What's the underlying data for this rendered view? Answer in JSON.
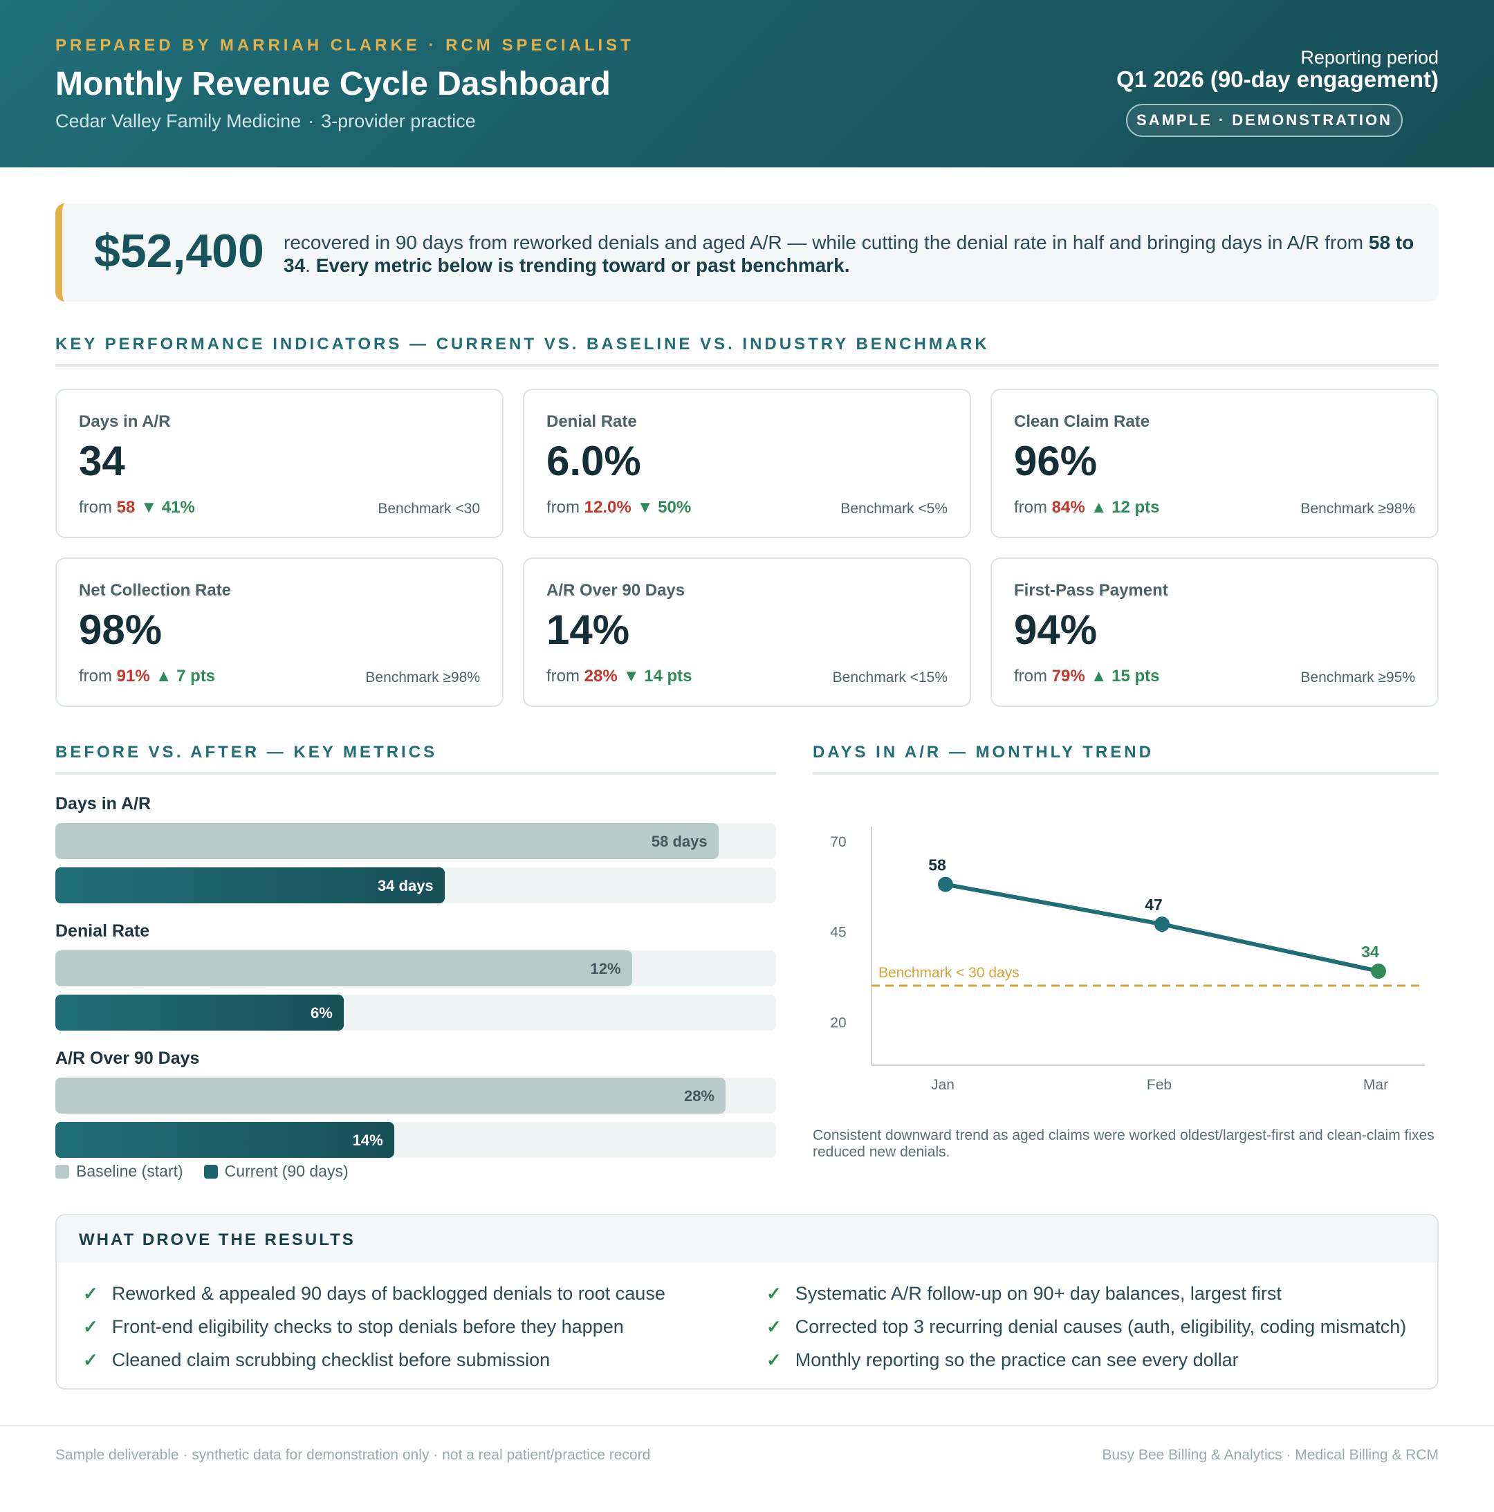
{
  "header": {
    "prepared_by": "PREPARED BY MARRIAH CLARKE · RCM SPECIALIST",
    "title": "Monthly Revenue Cycle Dashboard",
    "practice": "Cedar Valley Family Medicine",
    "separator": "·",
    "practice_size": "3-provider practice",
    "period_label": "Reporting period",
    "period_value": "Q1 2026 (90-day engagement)",
    "badge": "SAMPLE · DEMONSTRATION"
  },
  "hero": {
    "amount": "$52,400",
    "text_1": "recovered in 90 days from reworked denials and aged A/R — while cutting the denial rate in half and bringing days in A/R from ",
    "from_value": "58",
    "text_2": " to ",
    "to_value": "34",
    "text_3": ". ",
    "emphasis": "Every metric below is trending toward or past benchmark."
  },
  "kpi_section": {
    "title": "KEY PERFORMANCE INDICATORS — CURRENT VS. BASELINE VS. INDUSTRY BENCHMARK"
  },
  "kpis": [
    {
      "label": "Days in A/R",
      "value": "34",
      "from_label": "from",
      "baseline": "58",
      "delta": "▼ 41%",
      "benchmark": "Benchmark <30"
    },
    {
      "label": "Denial Rate",
      "value": "6.0%",
      "from_label": "from",
      "baseline": "12.0%",
      "delta": "▼ 50%",
      "benchmark": "Benchmark <5%"
    },
    {
      "label": "Clean Claim Rate",
      "value": "96%",
      "from_label": "from",
      "baseline": "84%",
      "delta": "▲ 12 pts",
      "benchmark": "Benchmark ≥98%"
    },
    {
      "label": "Net Collection Rate",
      "value": "98%",
      "from_label": "from",
      "baseline": "91%",
      "delta": "▲ 7 pts",
      "benchmark": "Benchmark ≥98%"
    },
    {
      "label": "A/R Over 90 Days",
      "value": "14%",
      "from_label": "from",
      "baseline": "28%",
      "delta": "▼ 14 pts",
      "benchmark": "Benchmark <15%"
    },
    {
      "label": "First-Pass Payment",
      "value": "94%",
      "from_label": "from",
      "baseline": "79%",
      "delta": "▲ 15 pts",
      "benchmark": "Benchmark ≥95%"
    }
  ],
  "bars_section": {
    "title": "BEFORE VS. AFTER — KEY METRICS",
    "groups": [
      {
        "label": "Days in A/R",
        "baseline_label": "58 days",
        "current_label": "34 days",
        "baseline_fraction": 0.92,
        "current_fraction": 0.54
      },
      {
        "label": "Denial Rate",
        "baseline_label": "12%",
        "current_label": "6%",
        "baseline_fraction": 0.8,
        "current_fraction": 0.4
      },
      {
        "label": "A/R Over 90 Days",
        "baseline_label": "28%",
        "current_label": "14%",
        "baseline_fraction": 0.93,
        "current_fraction": 0.47
      }
    ],
    "legend": {
      "baseline": "Baseline (start)",
      "current": "Current (90 days)"
    },
    "colors": {
      "baseline": "#b8cbcb",
      "current": "#1d636b"
    }
  },
  "trend_section": {
    "title": "DAYS IN A/R — MONTHLY TREND",
    "caption": "Consistent downward trend as aged claims were worked oldest/largest-first and clean-claim fixes reduced new denials."
  },
  "chart_data": {
    "type": "line",
    "x": [
      "Jan",
      "Feb",
      "Mar"
    ],
    "series": [
      {
        "values": [
          58,
          47,
          34
        ]
      }
    ],
    "data_labels": [
      "58",
      "47",
      "34"
    ],
    "yticks": [
      70,
      45,
      20
    ],
    "ylim": [
      8,
      74
    ],
    "benchmark": {
      "value": 30,
      "label": "Benchmark < 30 days",
      "color": "#d4a437"
    },
    "line_color": "#1f6d76",
    "last_point_color": "#2e8b57",
    "grid": false,
    "legend": "none"
  },
  "drivers": {
    "title": "WHAT DROVE THE RESULTS",
    "check": "✓",
    "left": [
      "Reworked & appealed 90 days of backlogged denials to root cause",
      "Front-end eligibility checks to stop denials before they happen",
      "Cleaned claim scrubbing checklist before submission"
    ],
    "right": [
      "Systematic A/R follow-up on 90+ day balances, largest first",
      "Corrected top 3 recurring denial causes (auth, eligibility, coding mismatch)",
      "Monthly reporting so the practice can see every dollar"
    ]
  },
  "footer": {
    "left": "Sample deliverable · synthetic data for demonstration only · not a real patient/practice record",
    "right": "Busy Bee Billing & Analytics · Medical Billing & RCM"
  }
}
